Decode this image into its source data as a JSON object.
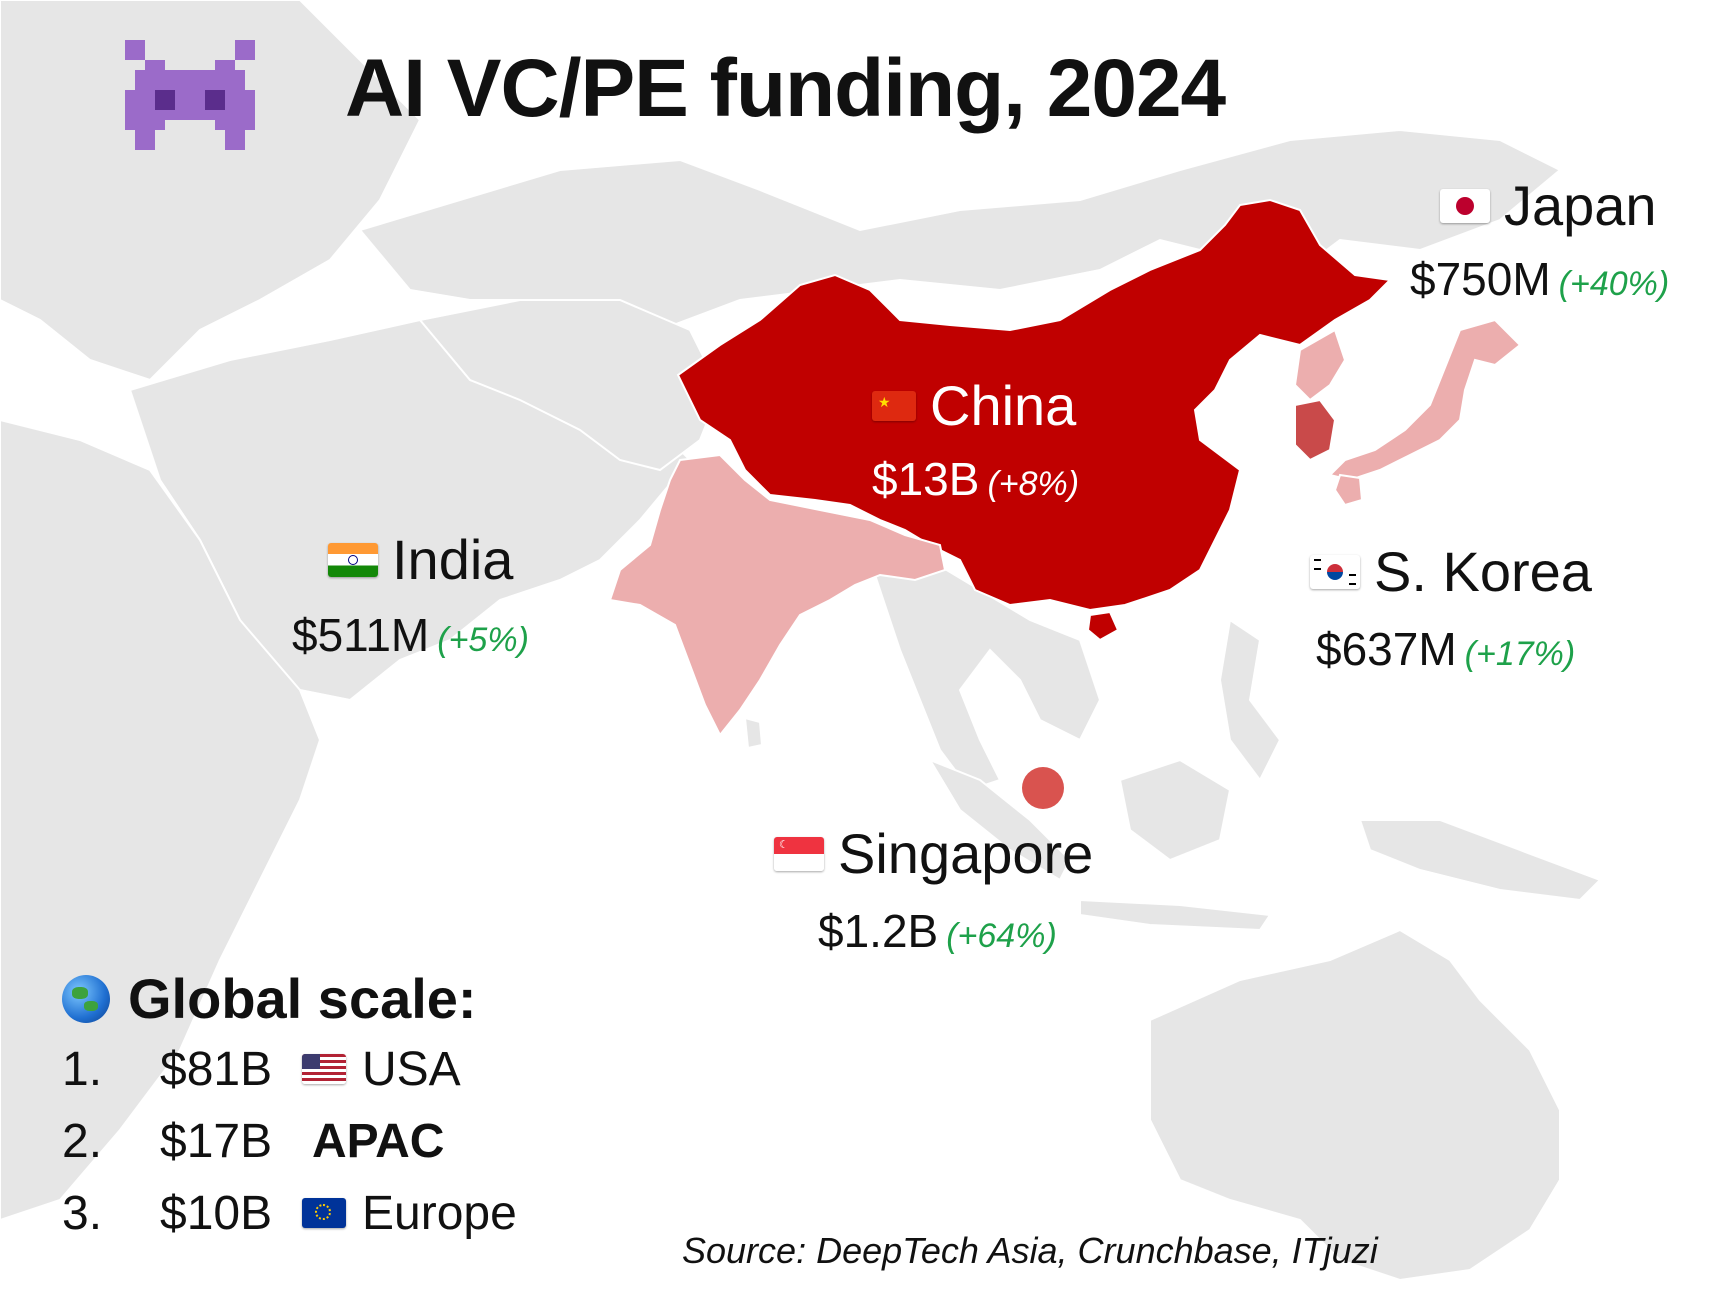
{
  "title": "AI VC/PE funding, 2024",
  "colors": {
    "land": "#e6e6e6",
    "china": "#c00000",
    "light_highlight": "#ecaeae",
    "singapore_dot": "#d9534f",
    "growth_text": "#1ea14a"
  },
  "countries": {
    "china": {
      "name": "China",
      "flag": "china-flag",
      "value": "$13B",
      "change": "(+8%)"
    },
    "japan": {
      "name": "Japan",
      "flag": "japan-flag",
      "value": "$750M",
      "change": "(+40%)"
    },
    "india": {
      "name": "India",
      "flag": "india-flag",
      "value": "$511M",
      "change": "(+5%)"
    },
    "south_korea": {
      "name": "S. Korea",
      "flag": "south-korea-flag",
      "value": "$637M",
      "change": "(+17%)"
    },
    "singapore": {
      "name": "Singapore",
      "flag": "singapore-flag",
      "value": "$1.2B",
      "change": "(+64%)"
    }
  },
  "global_scale": {
    "heading": "Global scale:",
    "icon": "globe-icon",
    "ranks": [
      {
        "num": "1.",
        "amount": "$81B",
        "flag": "usa-flag",
        "region": "USA"
      },
      {
        "num": "2.",
        "amount": "$17B",
        "flag": "",
        "region": "APAC"
      },
      {
        "num": "3.",
        "amount": "$10B",
        "flag": "eu-flag",
        "region": "Europe"
      }
    ]
  },
  "source": "Source: DeepTech Asia, Crunchbase, ITjuzi"
}
